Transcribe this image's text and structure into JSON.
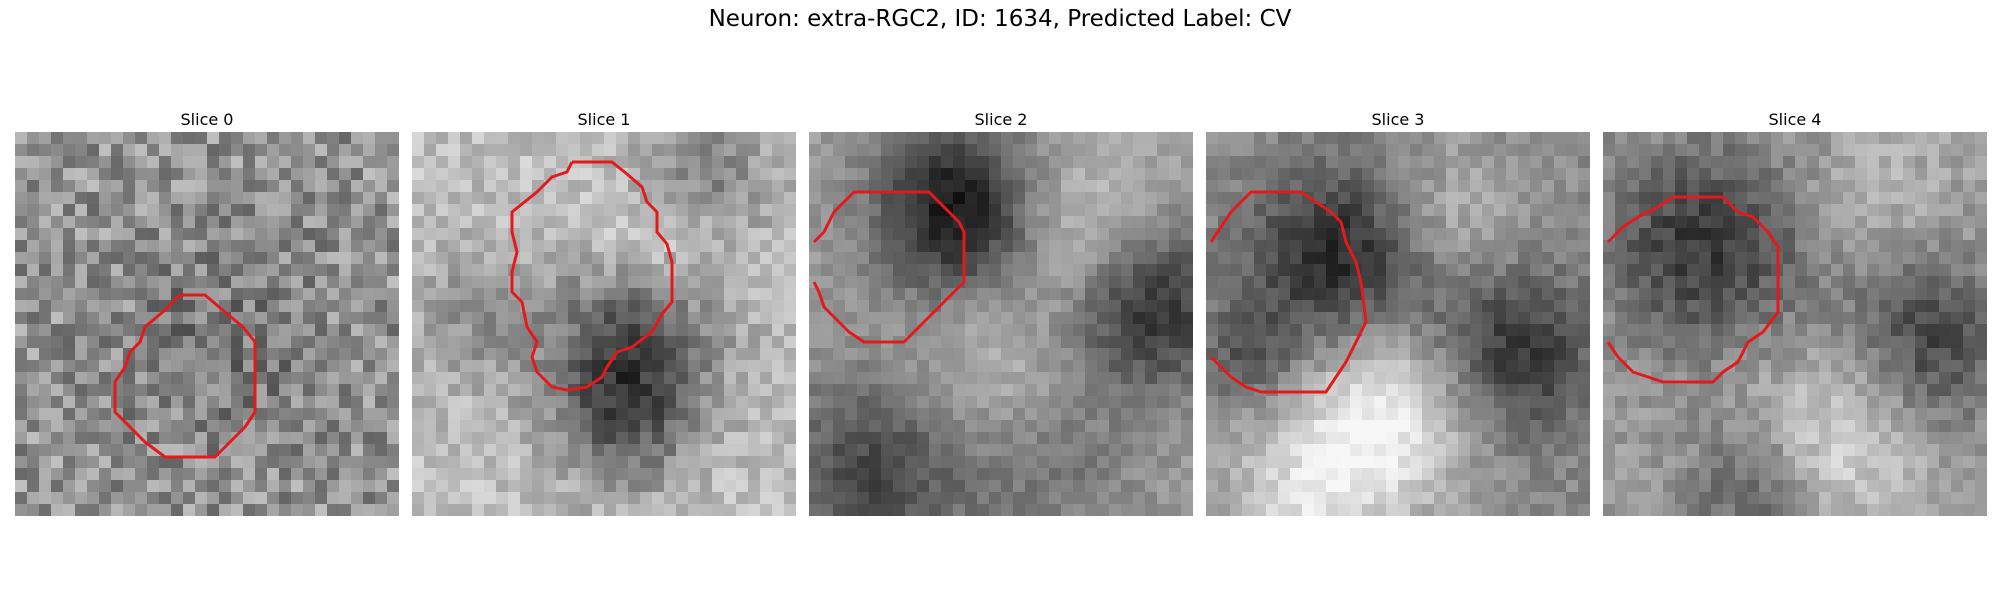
{
  "figure": {
    "title": "Neuron: extra-RGC2, ID: 1634, Predicted Label: CV"
  },
  "contour_color": "#e31a1c",
  "slices": [
    {
      "title": "Slice 0"
    },
    {
      "title": "Slice 1"
    },
    {
      "title": "Slice 2"
    },
    {
      "title": "Slice 3"
    },
    {
      "title": "Slice 4"
    }
  ]
}
